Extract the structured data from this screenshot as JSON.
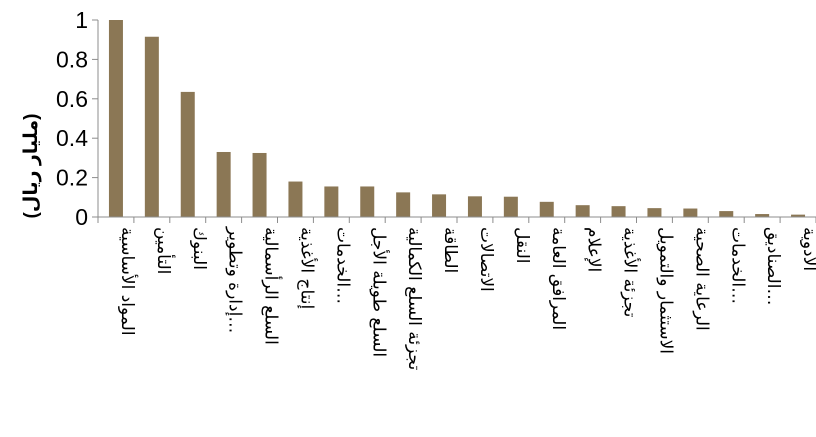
{
  "chart_data": {
    "type": "bar",
    "title": "",
    "xlabel": "",
    "ylabel": "(مليار ريال)",
    "ylim": [
      0,
      1
    ],
    "yticks": [
      "0",
      "0.2",
      "0.4",
      "0.6",
      "0.8",
      "1"
    ],
    "ytick_values": [
      0,
      0.2,
      0.4,
      0.6,
      0.8,
      1
    ],
    "grid": false,
    "legend": "none",
    "bar_color": "#8B7755",
    "categories": [
      "المواد الأساسية",
      "التأمين",
      "البنوك",
      "إدارة وتطوير…",
      "السلع الرأسمالية",
      "إنتاج الأغذية",
      "الخدمات…",
      "السلع طويلة الأجل",
      "تجزئة السلع الكمالية",
      "الطاقة",
      "الاتصالات",
      "النقل",
      "المرافق العامة",
      "الإعلام",
      "تجزئة الأغذية",
      "الاستثمار والتمويل",
      "الرعاية الصحية",
      "الخدمات…",
      "الصناديق…",
      "الأدوية"
    ],
    "values": [
      1.0,
      0.915,
      0.635,
      0.33,
      0.325,
      0.18,
      0.155,
      0.155,
      0.125,
      0.115,
      0.105,
      0.103,
      0.077,
      0.06,
      0.055,
      0.045,
      0.043,
      0.03,
      0.015,
      0.012
    ]
  }
}
